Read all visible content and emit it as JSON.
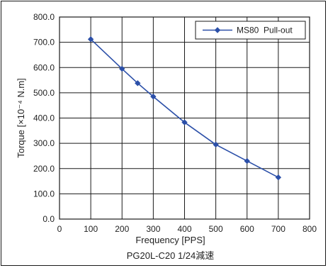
{
  "chart_data": {
    "type": "line",
    "title": "",
    "subtitle": "PG20L-C20 1/24減速",
    "xlabel": "Frequency [PPS]",
    "ylabel": "Torque [×10⁻⁴ N.m]",
    "xlim": [
      0,
      800
    ],
    "ylim": [
      0,
      800
    ],
    "xticks": [
      "0",
      "100",
      "200",
      "300",
      "400",
      "500",
      "600",
      "700",
      "800"
    ],
    "yticks": [
      "0.0",
      "100.0",
      "200.0",
      "300.0",
      "400.0",
      "500.0",
      "600.0",
      "700.0",
      "800.0"
    ],
    "grid": true,
    "legend_position": "top-right",
    "series": [
      {
        "name": "MS80  Pull-out",
        "color": "#2b4fa8",
        "marker": "diamond",
        "x": [
          100,
          200,
          250,
          300,
          400,
          500,
          600,
          700
        ],
        "y": [
          712,
          595,
          538,
          485,
          383,
          295,
          230,
          165
        ]
      }
    ]
  }
}
